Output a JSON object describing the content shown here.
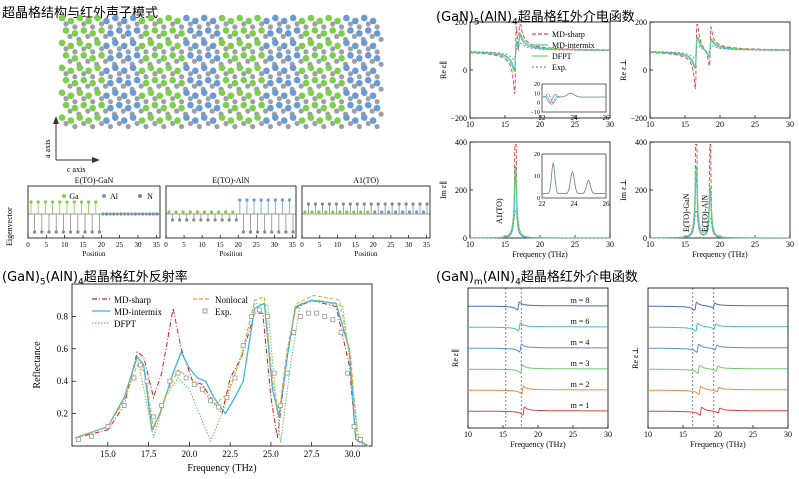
{
  "titles": {
    "structure": "超晶格结构与红外声子模式",
    "dielectric": "(GaN)5(AlN)4超晶格红外介电函数",
    "reflectance": "(GaN)5(AlN)4超晶格红外反射率",
    "dielectric_m": "(GaN)m(AlN)4超晶格红外介电函数"
  },
  "structure": {
    "a_axis": "a axis",
    "c_axis": "c axis",
    "colors": {
      "Ga": "#7ccf4a",
      "Al": "#6a9ad0",
      "N": "#9aa0a8"
    }
  },
  "eigen": {
    "ylabel": "Eigenvector",
    "xlabel": "Position",
    "ticks": [
      "0",
      "5",
      "10",
      "15",
      "20",
      "25",
      "30",
      "35"
    ],
    "panels": [
      {
        "title": "E(TO)-GaN"
      },
      {
        "title": "E(TO)-AlN"
      },
      {
        "title": "A1(TO)"
      }
    ],
    "legend": [
      "Ga",
      "Al",
      "N"
    ]
  },
  "chart_data": [
    {
      "type": "line",
      "panel": "Re eps parallel",
      "xlabel": "",
      "ylabel": "Re ε∥",
      "xlim": [
        10,
        30
      ],
      "ylim": [
        -200,
        200
      ],
      "xticks": [
        "10",
        "15",
        "20",
        "25",
        "30"
      ],
      "yticks": [
        "200",
        "0",
        "−200"
      ],
      "series": [
        {
          "name": "MD-sharp",
          "color": "#e0403c"
        },
        {
          "name": "MD-intermix",
          "color": "#3ec1e0"
        },
        {
          "name": "DFPT",
          "color": "#6cd06c"
        },
        {
          "name": "Exp.",
          "color": "#888888"
        }
      ],
      "inset": {
        "xlim": [
          22,
          26
        ],
        "ylim": [
          -10,
          20
        ],
        "xticks": [
          "22",
          "24",
          "26"
        ],
        "yticks": [
          "20",
          "10",
          "0",
          "−10"
        ]
      }
    },
    {
      "type": "line",
      "panel": "Re eps perp",
      "ylabel": "Re ε⊥",
      "xlim": [
        10,
        30
      ],
      "ylim": [
        -200,
        200
      ],
      "xticks": [
        "10",
        "15",
        "20",
        "25",
        "30"
      ],
      "yticks": [
        "200",
        "0",
        "−200"
      ]
    },
    {
      "type": "line",
      "panel": "Im eps parallel",
      "xlabel": "Frequency (THz)",
      "ylabel": "Im ε∥",
      "xlim": [
        10,
        30
      ],
      "ylim": [
        0,
        400
      ],
      "xticks": [
        "10",
        "15",
        "20",
        "25",
        "30"
      ],
      "yticks": [
        "400",
        "200",
        "0"
      ],
      "annotation": "A1(TO)",
      "inset": {
        "xlim": [
          22,
          26
        ],
        "ylim": [
          0,
          20
        ],
        "xticks": [
          "22",
          "24",
          "26"
        ],
        "yticks": [
          "20",
          "10",
          "0"
        ]
      }
    },
    {
      "type": "line",
      "panel": "Im eps perp",
      "xlabel": "Frequency (THz)",
      "ylabel": "Im ε⊥",
      "xlim": [
        10,
        30
      ],
      "ylim": [
        0,
        400
      ],
      "xticks": [
        "10",
        "15",
        "20",
        "25",
        "30"
      ],
      "yticks": [
        "400",
        "200",
        "0"
      ],
      "annotations": [
        "E(TO)-GaN",
        "E(TO)-AlN"
      ]
    },
    {
      "type": "line",
      "panel": "Reflectance",
      "xlabel": "Frequency (THz)",
      "ylabel": "Reflectance",
      "xlim": [
        12.8,
        31.2
      ],
      "ylim": [
        0.0,
        1.0
      ],
      "xticks": [
        "15.0",
        "17.5",
        "20.0",
        "22.5",
        "25.0",
        "27.5",
        "30.0"
      ],
      "yticks": [
        "0.8",
        "0.6",
        "0.4",
        "0.2"
      ],
      "legend": [
        "MD-sharp",
        "MD-intermix",
        "DFPT",
        "Nonlocal",
        "Exp."
      ],
      "series": [
        {
          "name": "MD-sharp",
          "color": "#c8202a",
          "points": [
            [
              13,
              0.05
            ],
            [
              15,
              0.1
            ],
            [
              16,
              0.25
            ],
            [
              16.8,
              0.58
            ],
            [
              17.2,
              0.55
            ],
            [
              17.8,
              0.3
            ],
            [
              18.3,
              0.45
            ],
            [
              19,
              0.85
            ],
            [
              19.5,
              0.6
            ],
            [
              20.2,
              0.4
            ],
            [
              20.8,
              0.38
            ],
            [
              21.3,
              0.3
            ],
            [
              22,
              0.2
            ],
            [
              22.5,
              0.42
            ],
            [
              23.2,
              0.55
            ],
            [
              24,
              0.82
            ],
            [
              24.5,
              0.82
            ],
            [
              25,
              0.3
            ],
            [
              25.4,
              0.05
            ],
            [
              26,
              0.55
            ],
            [
              26.5,
              0.85
            ],
            [
              27.5,
              0.9
            ],
            [
              29,
              0.86
            ],
            [
              29.8,
              0.5
            ],
            [
              30.2,
              0.05
            ],
            [
              31,
              0.0
            ]
          ]
        },
        {
          "name": "MD-intermix",
          "color": "#3eb4dc",
          "points": [
            [
              13,
              0.05
            ],
            [
              15,
              0.12
            ],
            [
              16,
              0.3
            ],
            [
              16.8,
              0.55
            ],
            [
              17.2,
              0.5
            ],
            [
              17.7,
              0.1
            ],
            [
              18.2,
              0.2
            ],
            [
              19,
              0.45
            ],
            [
              19.5,
              0.58
            ],
            [
              20,
              0.48
            ],
            [
              20.5,
              0.42
            ],
            [
              21,
              0.4
            ],
            [
              21.5,
              0.3
            ],
            [
              22.2,
              0.2
            ],
            [
              22.8,
              0.3
            ],
            [
              23.3,
              0.4
            ],
            [
              24,
              0.85
            ],
            [
              24.6,
              0.88
            ],
            [
              25.1,
              0.35
            ],
            [
              25.5,
              0.18
            ],
            [
              26,
              0.55
            ],
            [
              26.5,
              0.86
            ],
            [
              27.5,
              0.9
            ],
            [
              29,
              0.88
            ],
            [
              29.8,
              0.6
            ],
            [
              30.2,
              0.04
            ],
            [
              31,
              0.0
            ]
          ]
        },
        {
          "name": "DFPT",
          "color": "#5cc85c",
          "points": [
            [
              13,
              0.05
            ],
            [
              15,
              0.12
            ],
            [
              16,
              0.3
            ],
            [
              16.8,
              0.55
            ],
            [
              17.3,
              0.3
            ],
            [
              17.8,
              0.05
            ],
            [
              18.5,
              0.3
            ],
            [
              19.3,
              0.42
            ],
            [
              20,
              0.35
            ],
            [
              20.6,
              0.2
            ],
            [
              21.3,
              0.03
            ],
            [
              22,
              0.2
            ],
            [
              23,
              0.5
            ],
            [
              24,
              0.88
            ],
            [
              24.8,
              0.87
            ],
            [
              25.2,
              0.4
            ],
            [
              25.6,
              0.02
            ],
            [
              26.2,
              0.5
            ],
            [
              26.8,
              0.88
            ],
            [
              28,
              0.9
            ],
            [
              29.4,
              0.86
            ],
            [
              30,
              0.4
            ],
            [
              30.4,
              0.02
            ],
            [
              31,
              0.0
            ]
          ]
        },
        {
          "name": "Nonlocal",
          "color": "#f0a030",
          "points": [
            [
              13,
              0.05
            ],
            [
              15,
              0.12
            ],
            [
              16,
              0.28
            ],
            [
              16.8,
              0.5
            ],
            [
              17.3,
              0.45
            ],
            [
              17.8,
              0.1
            ],
            [
              18.5,
              0.3
            ],
            [
              19.3,
              0.47
            ],
            [
              20,
              0.42
            ],
            [
              20.8,
              0.35
            ],
            [
              21.5,
              0.25
            ],
            [
              22.3,
              0.32
            ],
            [
              23.2,
              0.55
            ],
            [
              24,
              0.9
            ],
            [
              24.6,
              0.92
            ],
            [
              25.1,
              0.4
            ],
            [
              25.5,
              0.2
            ],
            [
              26,
              0.6
            ],
            [
              26.6,
              0.88
            ],
            [
              27.6,
              0.93
            ],
            [
              29.2,
              0.9
            ],
            [
              29.9,
              0.55
            ],
            [
              30.3,
              0.03
            ],
            [
              31,
              0.0
            ]
          ]
        },
        {
          "name": "Exp.",
          "color": "#999999",
          "points": [
            [
              13.2,
              0.04
            ],
            [
              14,
              0.06
            ],
            [
              15,
              0.12
            ],
            [
              16,
              0.25
            ],
            [
              16.6,
              0.42
            ],
            [
              17,
              0.5
            ],
            [
              17.4,
              0.4
            ],
            [
              17.8,
              0.18
            ],
            [
              18.3,
              0.25
            ],
            [
              18.8,
              0.4
            ],
            [
              19.3,
              0.45
            ],
            [
              19.8,
              0.42
            ],
            [
              20.3,
              0.38
            ],
            [
              20.8,
              0.35
            ],
            [
              21.3,
              0.28
            ],
            [
              21.8,
              0.24
            ],
            [
              22.3,
              0.3
            ],
            [
              22.8,
              0.42
            ],
            [
              23.3,
              0.62
            ],
            [
              23.8,
              0.8
            ],
            [
              24.3,
              0.84
            ],
            [
              24.8,
              0.8
            ],
            [
              25.2,
              0.45
            ],
            [
              25.6,
              0.25
            ],
            [
              26,
              0.45
            ],
            [
              26.4,
              0.7
            ],
            [
              26.8,
              0.8
            ],
            [
              27.3,
              0.82
            ],
            [
              27.8,
              0.82
            ],
            [
              28.3,
              0.8
            ],
            [
              28.8,
              0.78
            ],
            [
              29.3,
              0.7
            ],
            [
              29.7,
              0.45
            ],
            [
              30.1,
              0.12
            ],
            [
              30.5,
              0.04
            ]
          ]
        }
      ]
    },
    {
      "type": "line",
      "panel": "Re eps parallel vs m",
      "xlabel": "Frequency (THz)",
      "ylabel": "Re ε∥",
      "xlim": [
        10,
        30
      ],
      "xticks": [
        "10",
        "15",
        "20",
        "25",
        "30"
      ],
      "series": [
        {
          "name": "m = 8",
          "color": "#4b6cb7"
        },
        {
          "name": "m = 6",
          "color": "#3ec1c0"
        },
        {
          "name": "m = 4",
          "color": "#5b8fd6"
        },
        {
          "name": "m = 3",
          "color": "#70c870"
        },
        {
          "name": "m = 2",
          "color": "#f08a3c"
        },
        {
          "name": "m = 1",
          "color": "#e04040"
        }
      ]
    },
    {
      "type": "line",
      "panel": "Re eps perp vs m",
      "xlabel": "Frequency (THz)",
      "ylabel": "Re ε⊥",
      "xlim": [
        10,
        30
      ],
      "xticks": [
        "10",
        "15",
        "20",
        "25",
        "30"
      ]
    }
  ]
}
